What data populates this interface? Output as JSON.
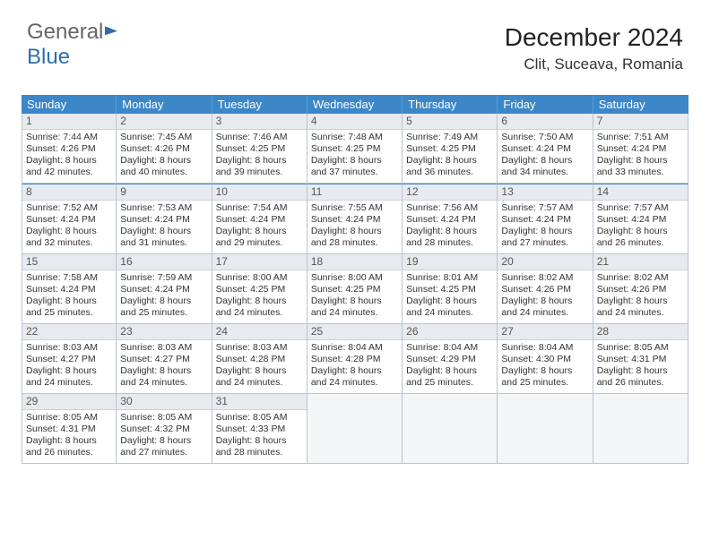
{
  "logo": {
    "part1": "General",
    "part2": "Blue"
  },
  "header": {
    "title": "December 2024",
    "location": "Clit, Suceava, Romania"
  },
  "dayNames": [
    "Sunday",
    "Monday",
    "Tuesday",
    "Wednesday",
    "Thursday",
    "Friday",
    "Saturday"
  ],
  "style": {
    "header_bg": "#3b87c8",
    "header_text": "#ffffff",
    "daynum_bg": "#e7ebef",
    "border_color": "#b8c5d0",
    "empty_bg": "#f3f5f7",
    "font_size_cell": 10.5,
    "font_size_daynum": 12,
    "font_size_title": 28,
    "font_size_loc": 17
  },
  "days": [
    {
      "n": "1",
      "sunrise": "7:44 AM",
      "sunset": "4:26 PM",
      "daylight": "8 hours and 42 minutes."
    },
    {
      "n": "2",
      "sunrise": "7:45 AM",
      "sunset": "4:26 PM",
      "daylight": "8 hours and 40 minutes."
    },
    {
      "n": "3",
      "sunrise": "7:46 AM",
      "sunset": "4:25 PM",
      "daylight": "8 hours and 39 minutes."
    },
    {
      "n": "4",
      "sunrise": "7:48 AM",
      "sunset": "4:25 PM",
      "daylight": "8 hours and 37 minutes."
    },
    {
      "n": "5",
      "sunrise": "7:49 AM",
      "sunset": "4:25 PM",
      "daylight": "8 hours and 36 minutes."
    },
    {
      "n": "6",
      "sunrise": "7:50 AM",
      "sunset": "4:24 PM",
      "daylight": "8 hours and 34 minutes."
    },
    {
      "n": "7",
      "sunrise": "7:51 AM",
      "sunset": "4:24 PM",
      "daylight": "8 hours and 33 minutes."
    },
    {
      "n": "8",
      "sunrise": "7:52 AM",
      "sunset": "4:24 PM",
      "daylight": "8 hours and 32 minutes."
    },
    {
      "n": "9",
      "sunrise": "7:53 AM",
      "sunset": "4:24 PM",
      "daylight": "8 hours and 31 minutes."
    },
    {
      "n": "10",
      "sunrise": "7:54 AM",
      "sunset": "4:24 PM",
      "daylight": "8 hours and 29 minutes."
    },
    {
      "n": "11",
      "sunrise": "7:55 AM",
      "sunset": "4:24 PM",
      "daylight": "8 hours and 28 minutes."
    },
    {
      "n": "12",
      "sunrise": "7:56 AM",
      "sunset": "4:24 PM",
      "daylight": "8 hours and 28 minutes."
    },
    {
      "n": "13",
      "sunrise": "7:57 AM",
      "sunset": "4:24 PM",
      "daylight": "8 hours and 27 minutes."
    },
    {
      "n": "14",
      "sunrise": "7:57 AM",
      "sunset": "4:24 PM",
      "daylight": "8 hours and 26 minutes."
    },
    {
      "n": "15",
      "sunrise": "7:58 AM",
      "sunset": "4:24 PM",
      "daylight": "8 hours and 25 minutes."
    },
    {
      "n": "16",
      "sunrise": "7:59 AM",
      "sunset": "4:24 PM",
      "daylight": "8 hours and 25 minutes."
    },
    {
      "n": "17",
      "sunrise": "8:00 AM",
      "sunset": "4:25 PM",
      "daylight": "8 hours and 24 minutes."
    },
    {
      "n": "18",
      "sunrise": "8:00 AM",
      "sunset": "4:25 PM",
      "daylight": "8 hours and 24 minutes."
    },
    {
      "n": "19",
      "sunrise": "8:01 AM",
      "sunset": "4:25 PM",
      "daylight": "8 hours and 24 minutes."
    },
    {
      "n": "20",
      "sunrise": "8:02 AM",
      "sunset": "4:26 PM",
      "daylight": "8 hours and 24 minutes."
    },
    {
      "n": "21",
      "sunrise": "8:02 AM",
      "sunset": "4:26 PM",
      "daylight": "8 hours and 24 minutes."
    },
    {
      "n": "22",
      "sunrise": "8:03 AM",
      "sunset": "4:27 PM",
      "daylight": "8 hours and 24 minutes."
    },
    {
      "n": "23",
      "sunrise": "8:03 AM",
      "sunset": "4:27 PM",
      "daylight": "8 hours and 24 minutes."
    },
    {
      "n": "24",
      "sunrise": "8:03 AM",
      "sunset": "4:28 PM",
      "daylight": "8 hours and 24 minutes."
    },
    {
      "n": "25",
      "sunrise": "8:04 AM",
      "sunset": "4:28 PM",
      "daylight": "8 hours and 24 minutes."
    },
    {
      "n": "26",
      "sunrise": "8:04 AM",
      "sunset": "4:29 PM",
      "daylight": "8 hours and 25 minutes."
    },
    {
      "n": "27",
      "sunrise": "8:04 AM",
      "sunset": "4:30 PM",
      "daylight": "8 hours and 25 minutes."
    },
    {
      "n": "28",
      "sunrise": "8:05 AM",
      "sunset": "4:31 PM",
      "daylight": "8 hours and 26 minutes."
    },
    {
      "n": "29",
      "sunrise": "8:05 AM",
      "sunset": "4:31 PM",
      "daylight": "8 hours and 26 minutes."
    },
    {
      "n": "30",
      "sunrise": "8:05 AM",
      "sunset": "4:32 PM",
      "daylight": "8 hours and 27 minutes."
    },
    {
      "n": "31",
      "sunrise": "8:05 AM",
      "sunset": "4:33 PM",
      "daylight": "8 hours and 28 minutes."
    }
  ],
  "labels": {
    "sunrise": "Sunrise: ",
    "sunset": "Sunset: ",
    "daylight": "Daylight: "
  },
  "trailingEmpty": 4
}
